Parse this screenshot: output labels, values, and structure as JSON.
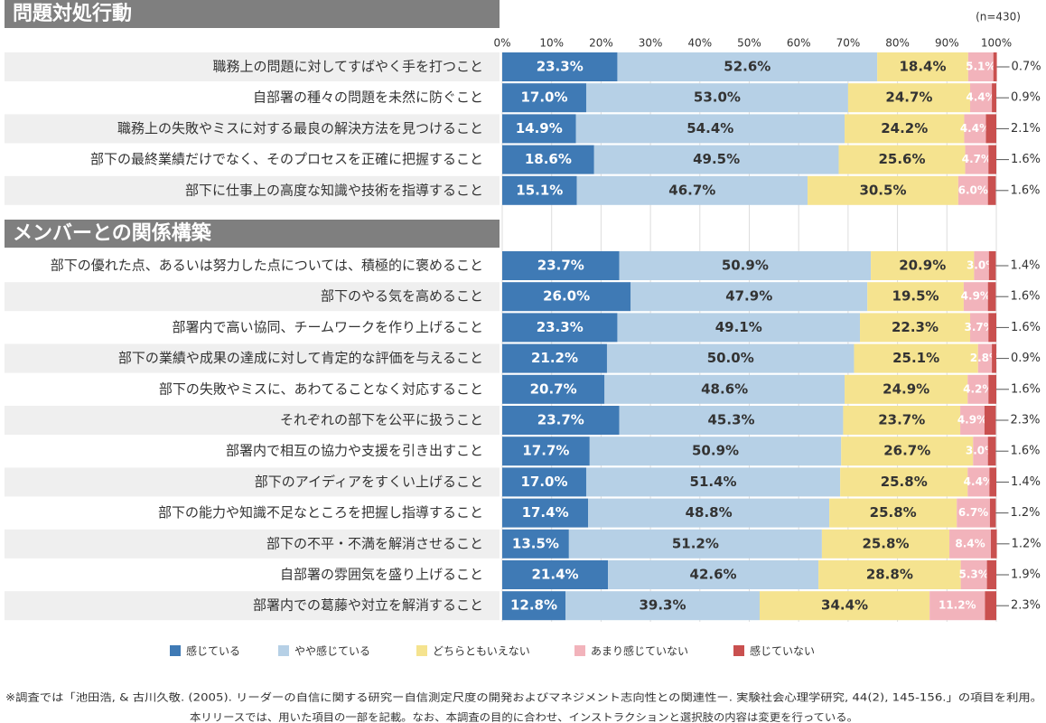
{
  "chart_data": {
    "type": "bar",
    "orientation": "horizontal",
    "stacked": true,
    "note": "(n=430)",
    "groups": [
      {
        "title": "問題対処行動",
        "categories": [
          "職務上の問題に対してすばやく手を打つこと",
          "自部署の種々の問題を未然に防ぐこと",
          "職務上の失敗やミスに対する最良の解決方法を見つけること",
          "部下の最終業績だけでなく、そのプロセスを正確に把握すること",
          "部下に仕事上の高度な知識や技術を指導すること"
        ]
      },
      {
        "title": "メンバーとの関係構築",
        "categories": [
          "部下の優れた点、あるいは努力した点については、積極的に褒めること",
          "部下のやる気を高めること",
          "部署内で高い協同、チームワークを作り上げること",
          "部下の業績や成果の達成に対して肯定的な評価を与えること",
          "部下の失敗やミスに、あわてることなく対応すること",
          "それぞれの部下を公平に扱うこと",
          "部署内で相互の協力や支援を引き出すこと",
          "部下のアイディアをすくい上げること",
          "部下の能力や知識不足なところを把握し指導すること",
          "部下の不平・不満を解消させること",
          "自部署の雰囲気を盛り上げること",
          "部署内での葛藤や対立を解消すること"
        ]
      }
    ],
    "series": [
      {
        "name": "感じている",
        "color": "#3f7ab5",
        "values": [
          23.3,
          17.0,
          14.9,
          18.6,
          15.1,
          23.7,
          26.0,
          23.3,
          21.2,
          20.7,
          23.7,
          17.7,
          17.0,
          17.4,
          13.5,
          21.4,
          12.8
        ],
        "value_labels": [
          "23.3%",
          "17.0%",
          "14.9%",
          "18.6%",
          "15.1%",
          "23.7%",
          "26.0%",
          "23.3%",
          "21.2%",
          "20.7%",
          "23.7%",
          "17.7%",
          "17.0%",
          "17.4%",
          "13.5%",
          "21.4%",
          "12.8%"
        ]
      },
      {
        "name": "やや感じている",
        "color": "#b6d0e6",
        "values": [
          52.6,
          53.0,
          54.4,
          49.5,
          46.7,
          50.9,
          47.9,
          49.1,
          50.0,
          48.6,
          45.3,
          50.9,
          51.4,
          48.8,
          51.2,
          42.6,
          39.3
        ],
        "value_labels": [
          "52.6%",
          "53.0%",
          "54.4%",
          "49.5%",
          "46.7%",
          "50.9%",
          "47.9%",
          "49.1%",
          "50.0%",
          "48.6%",
          "45.3%",
          "50.9%",
          "51.4%",
          "48.8%",
          "51.2%",
          "42.6%",
          "39.3%"
        ]
      },
      {
        "name": "どちらともいえない",
        "color": "#f5e38f",
        "values": [
          18.4,
          24.7,
          24.2,
          25.6,
          30.5,
          20.9,
          19.5,
          22.3,
          25.1,
          24.9,
          23.7,
          26.7,
          25.8,
          25.8,
          25.8,
          28.8,
          34.4
        ],
        "value_labels": [
          "18.4%",
          "24.7%",
          "24.2%",
          "25.6%",
          "30.5%",
          "20.9%",
          "19.5%",
          "22.3%",
          "25.1%",
          "24.9%",
          "23.7%",
          "26.7%",
          "25.8%",
          "25.8%",
          "25.8%",
          "28.8%",
          "34.4%"
        ]
      },
      {
        "name": "あまり感じていない",
        "color": "#f2b3bb",
        "values": [
          5.1,
          4.4,
          4.4,
          4.7,
          6.0,
          3.0,
          4.9,
          3.7,
          2.8,
          4.2,
          4.9,
          3.0,
          4.4,
          6.7,
          8.4,
          5.3,
          11.2
        ],
        "value_labels": [
          "5.1%",
          "4.4%",
          "4.4%",
          "4.7%",
          "6.0%",
          "3.0%",
          "4.9%",
          "3.7%",
          "2.8%",
          "4.2%",
          "4.9%",
          "3.0%",
          "4.4%",
          "6.7%",
          "8.4%",
          "5.3%",
          "11.2%"
        ]
      },
      {
        "name": "感じていない",
        "color": "#c9504f",
        "values": [
          0.7,
          0.9,
          2.1,
          1.6,
          1.6,
          1.4,
          1.6,
          1.6,
          0.9,
          1.6,
          2.3,
          1.6,
          1.4,
          1.2,
          1.2,
          1.9,
          2.3
        ],
        "value_labels": [
          "0.7%",
          "0.9%",
          "2.1%",
          "1.6%",
          "1.6%",
          "1.4%",
          "1.6%",
          "1.6%",
          "0.9%",
          "1.6%",
          "2.3%",
          "1.6%",
          "1.4%",
          "1.2%",
          "1.2%",
          "1.9%",
          "2.3%"
        ]
      }
    ],
    "xlim": [
      0,
      100
    ],
    "xticks": [
      {
        "value": 0,
        "label": "0%"
      },
      {
        "value": 10,
        "label": "10%"
      },
      {
        "value": 20,
        "label": "20%"
      },
      {
        "value": 30,
        "label": "30%"
      },
      {
        "value": 40,
        "label": "40%"
      },
      {
        "value": 50,
        "label": "50%"
      },
      {
        "value": 60,
        "label": "60%"
      },
      {
        "value": 70,
        "label": "70%"
      },
      {
        "value": 80,
        "label": "80%"
      },
      {
        "value": 90,
        "label": "90%"
      },
      {
        "value": 100,
        "label": "100%"
      }
    ],
    "grid": true,
    "legend": "bottom",
    "footnotes": [
      "※調査では「池田浩, & 古川久敬. (2005). リーダーの自信に関する研究ー自信測定尺度の開発およびマネジメント志向性との関連性ー. 実験社会心理学研究, 44(2), 145-156.」の項目を利用。",
      "本リリースでは、用いた項目の一部を記載。なお、本調査の目的に合わせ、インストラクションと選択肢の内容は変更を行っている。"
    ]
  }
}
